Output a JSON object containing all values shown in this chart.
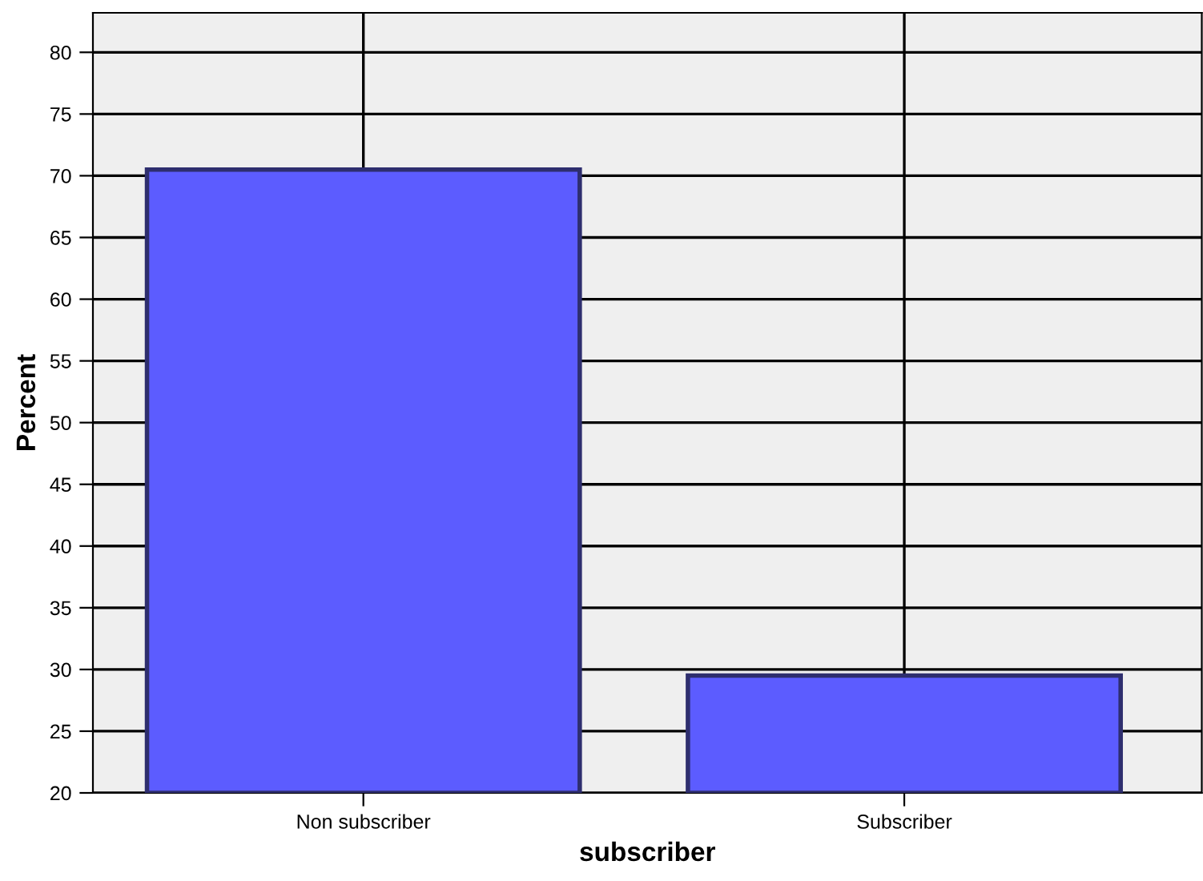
{
  "chart_data": {
    "type": "bar",
    "xlabel": "subscriber",
    "ylabel": "Percent",
    "categories": [
      "Non subscriber",
      "Subscriber"
    ],
    "values": [
      70.5,
      29.5
    ],
    "color": "#5c5cff",
    "ylim": [
      20,
      83.2
    ],
    "yticks": [
      20,
      25,
      30,
      35,
      40,
      45,
      50,
      55,
      60,
      65,
      70,
      75,
      80
    ],
    "grid": true
  }
}
